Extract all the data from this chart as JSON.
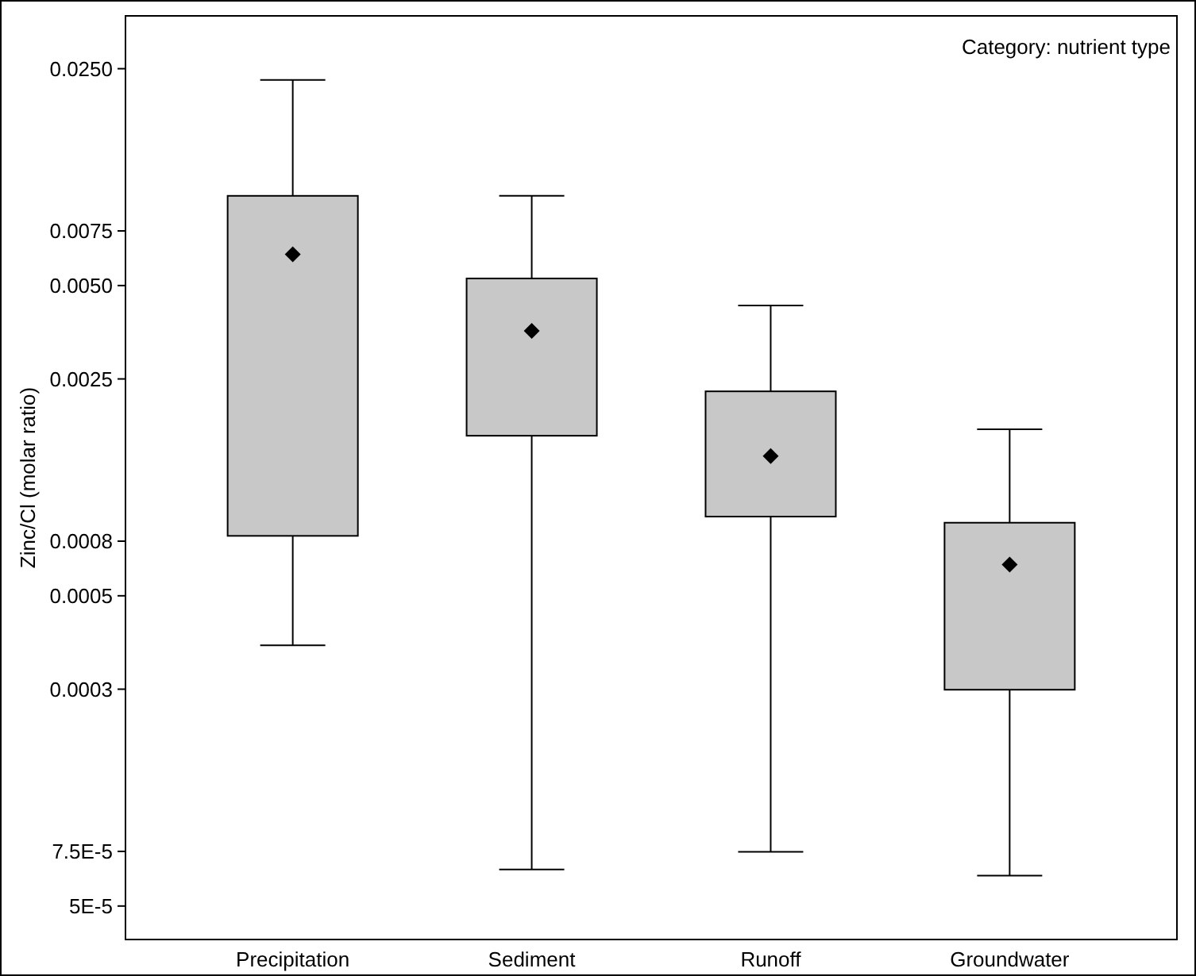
{
  "chart_data": {
    "type": "box",
    "ylabel": "Zinc/Cl (molar ratio)",
    "categories": [
      "Precipitation",
      "Sediment",
      "Runoff",
      "Groundwater"
    ],
    "boxes": [
      {
        "low": 0.000346,
        "q1": 0.00078,
        "median": 0.0063,
        "q3": 0.00973,
        "high": 0.023
      },
      {
        "low": 6.56e-05,
        "q1": 0.00164,
        "median": 0.00357,
        "q3": 0.00527,
        "high": 0.00973
      },
      {
        "low": 7.48e-05,
        "q1": 0.0009,
        "median": 0.00141,
        "q3": 0.00228,
        "high": 0.00431
      },
      {
        "low": 6.27e-05,
        "q1": 0.000249,
        "median": 0.00063,
        "q3": 0.00086,
        "high": 0.00172
      }
    ],
    "color": "#c8c8c8",
    "marker": "diamond",
    "log": "y",
    "ylim": [
      3.9e-05,
      0.037
    ],
    "yticks": [
      {
        "value": 0.025,
        "label": "0.0250"
      },
      {
        "value": 0.0075,
        "label": "0.0075"
      },
      {
        "value": 0.005,
        "label": "0.0050"
      },
      {
        "value": 0.0025,
        "label": "0.0025"
      },
      {
        "value": 0.00075,
        "label": "0.0008"
      },
      {
        "value": 0.0005,
        "label": "0.0005"
      },
      {
        "value": 0.00025,
        "label": "0.0003"
      },
      {
        "value": 7.5e-05,
        "label": "7.5E-5"
      },
      {
        "value": 5e-05,
        "label": "5E-5"
      }
    ],
    "annotations": [
      "Category: nutrient type"
    ],
    "grid": false
  }
}
